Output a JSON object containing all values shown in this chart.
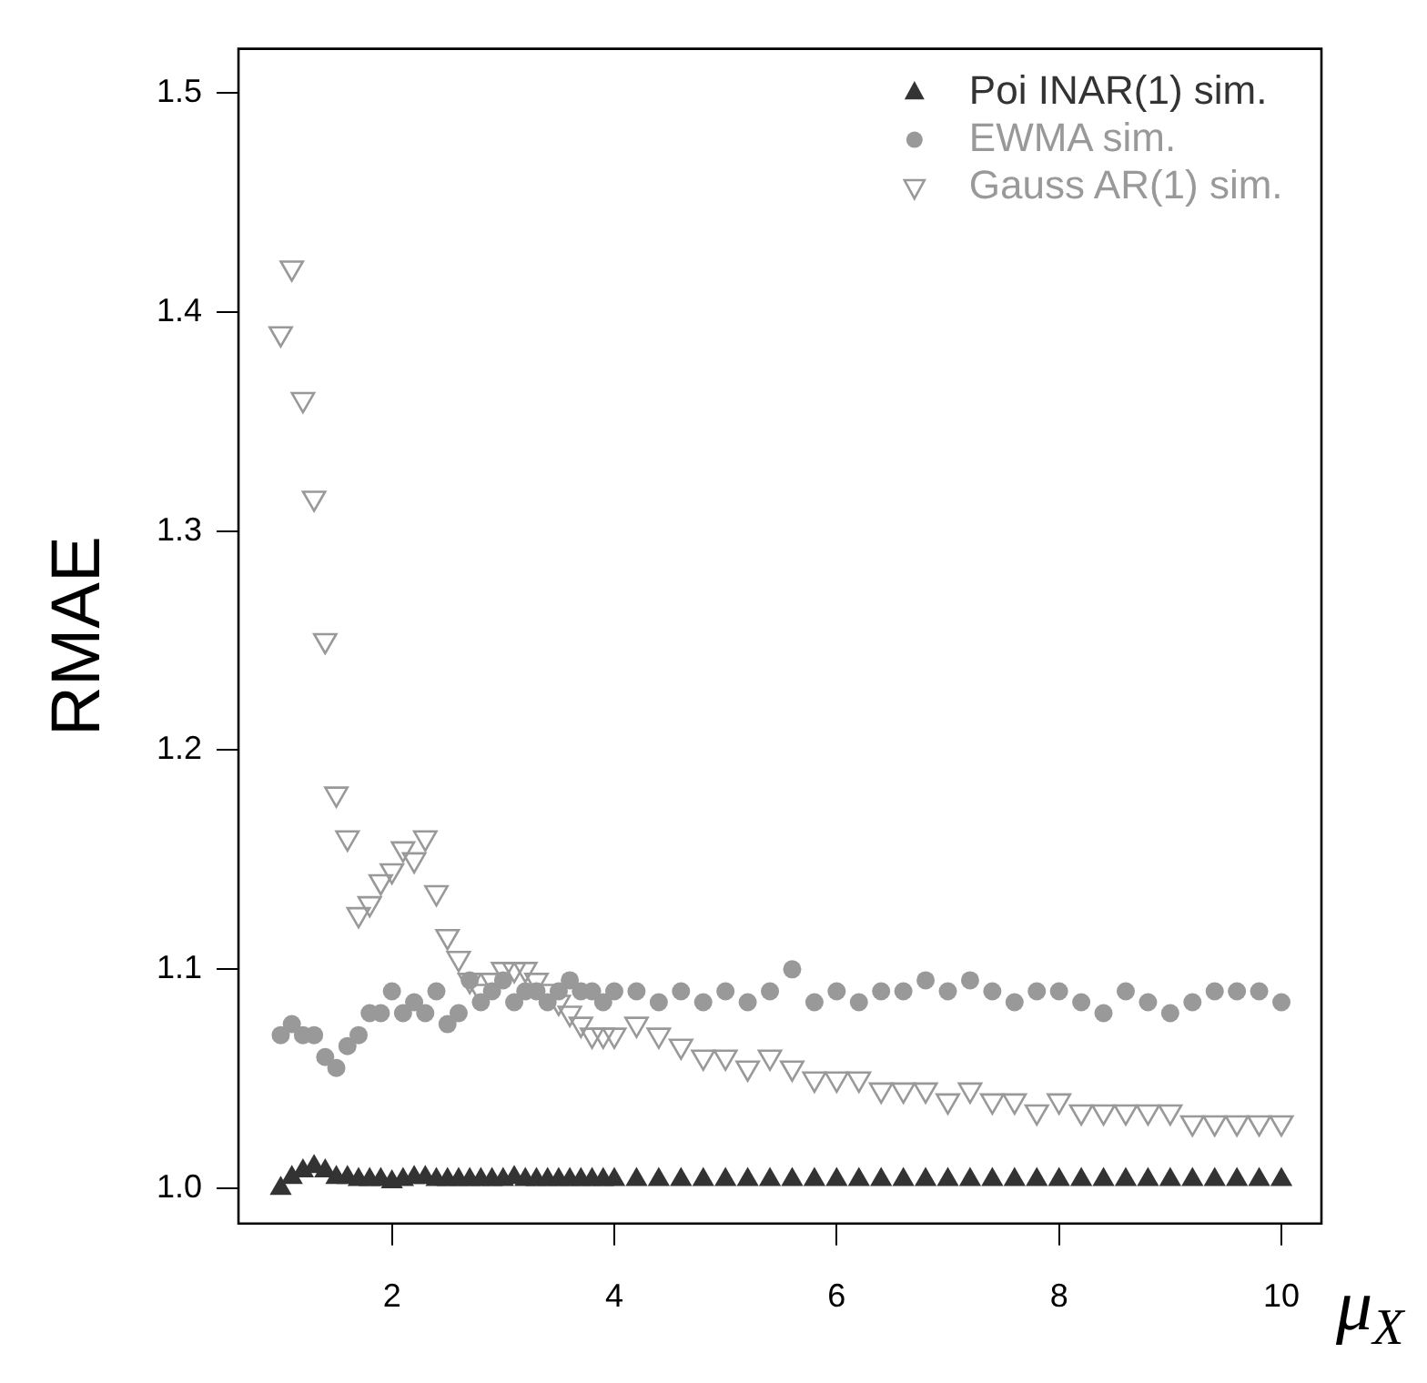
{
  "chart_data": {
    "type": "scatter",
    "xlabel": "μ$_{X}$",
    "ylabel": "RMAE",
    "x": [
      1.0,
      1.1,
      1.2,
      1.3,
      1.4,
      1.5,
      1.6,
      1.7,
      1.8,
      1.9,
      2.0,
      2.1,
      2.2,
      2.3,
      2.4,
      2.5,
      2.6,
      2.7,
      2.8,
      2.9,
      3.0,
      3.1,
      3.2,
      3.3,
      3.4,
      3.5,
      3.6,
      3.7,
      3.8,
      3.9,
      4.0,
      4.2,
      4.4,
      4.6,
      4.8,
      5.0,
      5.2,
      5.4,
      5.6,
      5.8,
      6.0,
      6.2,
      6.4,
      6.6,
      6.8,
      7.0,
      7.2,
      7.4,
      7.6,
      7.8,
      8.0,
      8.2,
      8.4,
      8.6,
      8.8,
      9.0,
      9.2,
      9.4,
      9.6,
      9.8,
      10.0
    ],
    "series": [
      {
        "name": "Poi INAR(1) sim.",
        "color": "#333333",
        "marker": "triangle",
        "values": [
          1.0,
          1.005,
          1.008,
          1.01,
          1.008,
          1.005,
          1.005,
          1.004,
          1.004,
          1.004,
          1.003,
          1.004,
          1.005,
          1.005,
          1.004,
          1.004,
          1.004,
          1.004,
          1.004,
          1.004,
          1.004,
          1.005,
          1.004,
          1.004,
          1.004,
          1.004,
          1.004,
          1.004,
          1.004,
          1.004,
          1.004,
          1.004,
          1.004,
          1.004,
          1.004,
          1.004,
          1.004,
          1.004,
          1.004,
          1.004,
          1.004,
          1.004,
          1.004,
          1.004,
          1.004,
          1.004,
          1.004,
          1.004,
          1.004,
          1.004,
          1.004,
          1.004,
          1.004,
          1.004,
          1.004,
          1.004,
          1.004,
          1.004,
          1.004,
          1.004,
          1.004
        ]
      },
      {
        "name": "EWMA sim.",
        "color": "#999999",
        "marker": "circle",
        "values": [
          1.07,
          1.075,
          1.07,
          1.07,
          1.06,
          1.055,
          1.065,
          1.07,
          1.08,
          1.08,
          1.09,
          1.08,
          1.085,
          1.08,
          1.09,
          1.075,
          1.08,
          1.095,
          1.085,
          1.09,
          1.095,
          1.085,
          1.09,
          1.09,
          1.085,
          1.09,
          1.095,
          1.09,
          1.09,
          1.085,
          1.09,
          1.09,
          1.085,
          1.09,
          1.085,
          1.09,
          1.085,
          1.09,
          1.1,
          1.085,
          1.09,
          1.085,
          1.09,
          1.09,
          1.095,
          1.09,
          1.095,
          1.09,
          1.085,
          1.09,
          1.09,
          1.085,
          1.08,
          1.09,
          1.085,
          1.08,
          1.085,
          1.09,
          1.09,
          1.09,
          1.085
        ]
      },
      {
        "name": "Gauss AR(1) sim.",
        "color": "#999999",
        "marker": "triangle-down",
        "values": [
          1.39,
          1.42,
          1.36,
          1.315,
          1.25,
          1.18,
          1.16,
          1.125,
          1.13,
          1.14,
          1.145,
          1.155,
          1.15,
          1.16,
          1.135,
          1.115,
          1.105,
          1.095,
          1.09,
          1.095,
          1.1,
          1.1,
          1.1,
          1.095,
          1.09,
          1.085,
          1.08,
          1.075,
          1.07,
          1.07,
          1.07,
          1.075,
          1.07,
          1.065,
          1.06,
          1.06,
          1.055,
          1.06,
          1.055,
          1.05,
          1.05,
          1.05,
          1.045,
          1.045,
          1.045,
          1.04,
          1.045,
          1.04,
          1.04,
          1.035,
          1.04,
          1.035,
          1.035,
          1.035,
          1.035,
          1.035,
          1.03,
          1.03,
          1.03,
          1.03,
          1.03
        ]
      }
    ],
    "xlim": [
      0.62,
      10.36
    ],
    "ylim": [
      0.984,
      1.52
    ],
    "xticks": [
      2,
      4,
      6,
      8,
      10
    ],
    "yticks": [
      {
        "value": 1,
        "label": "1.0"
      },
      1.1,
      1.2,
      1.3,
      1.4,
      {
        "value": 1.5,
        "label": "1.5"
      }
    ],
    "grid": false,
    "legend": "top right"
  }
}
